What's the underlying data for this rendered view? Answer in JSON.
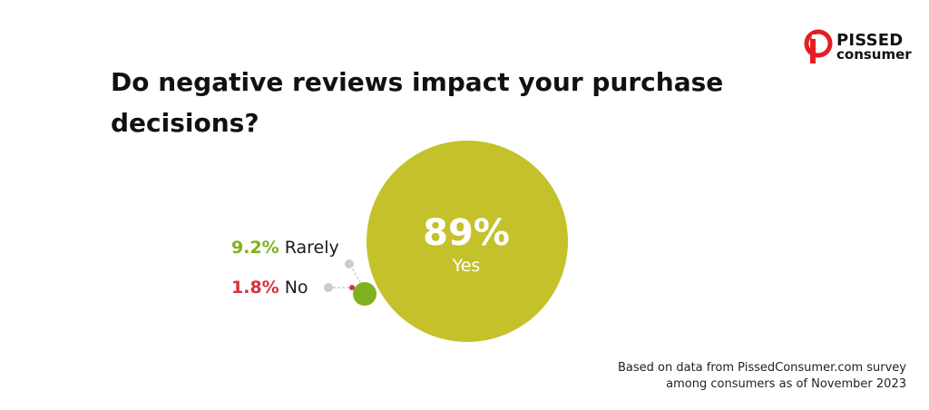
{
  "title": "Do negative reviews impact  your purchase decisions?",
  "logo": {
    "top": "PISSED",
    "bottom": "consumer"
  },
  "footnote": {
    "line1": "Based on data from PissedConsumer.com survey",
    "line2": "among consumers as of November 2023"
  },
  "colors": {
    "yes": "#c4c12b",
    "rarely": "#7fb11e",
    "no": "#d63236",
    "connector": "#cccccc",
    "logo_red": "#e31e24"
  },
  "chart_data": {
    "type": "bubble",
    "title": "Do negative reviews impact  your purchase decisions?",
    "series": [
      {
        "category": "Yes",
        "value": 89,
        "value_label": "89%"
      },
      {
        "category": "Rarely",
        "value": 9.2,
        "value_label": "9.2%"
      },
      {
        "category": "No",
        "value": 1.8,
        "value_label": "1.8%"
      }
    ]
  }
}
